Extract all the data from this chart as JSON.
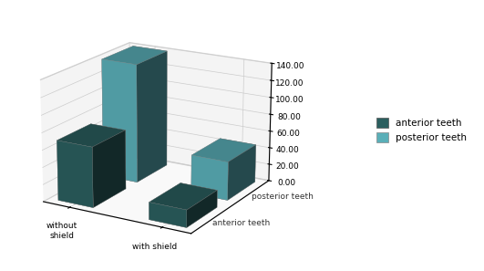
{
  "groups": [
    "without shield",
    "with shield"
  ],
  "series": [
    "anterior teeth",
    "posterior teeth"
  ],
  "values": {
    "without shield": {
      "anterior teeth": 70,
      "posterior teeth": 140
    },
    "with shield": {
      "anterior teeth": 20,
      "posterior teeth": 45
    }
  },
  "colors": {
    "anterior teeth": "#2b5f5f",
    "posterior teeth": "#5aafb8"
  },
  "zlim": [
    0,
    140
  ],
  "zticks": [
    0,
    20,
    40,
    60,
    80,
    100,
    120,
    140
  ],
  "ztick_labels": [
    "0.00",
    "20.00",
    "40.00",
    "60.00",
    "80.00",
    "100.00",
    "120.00",
    "140.00"
  ],
  "legend_labels": [
    "anterior teeth",
    "posterior teeth"
  ],
  "background_color": "#ffffff",
  "elev": 18,
  "azim": -60,
  "bar_width": 0.55,
  "bar_depth": 0.55
}
